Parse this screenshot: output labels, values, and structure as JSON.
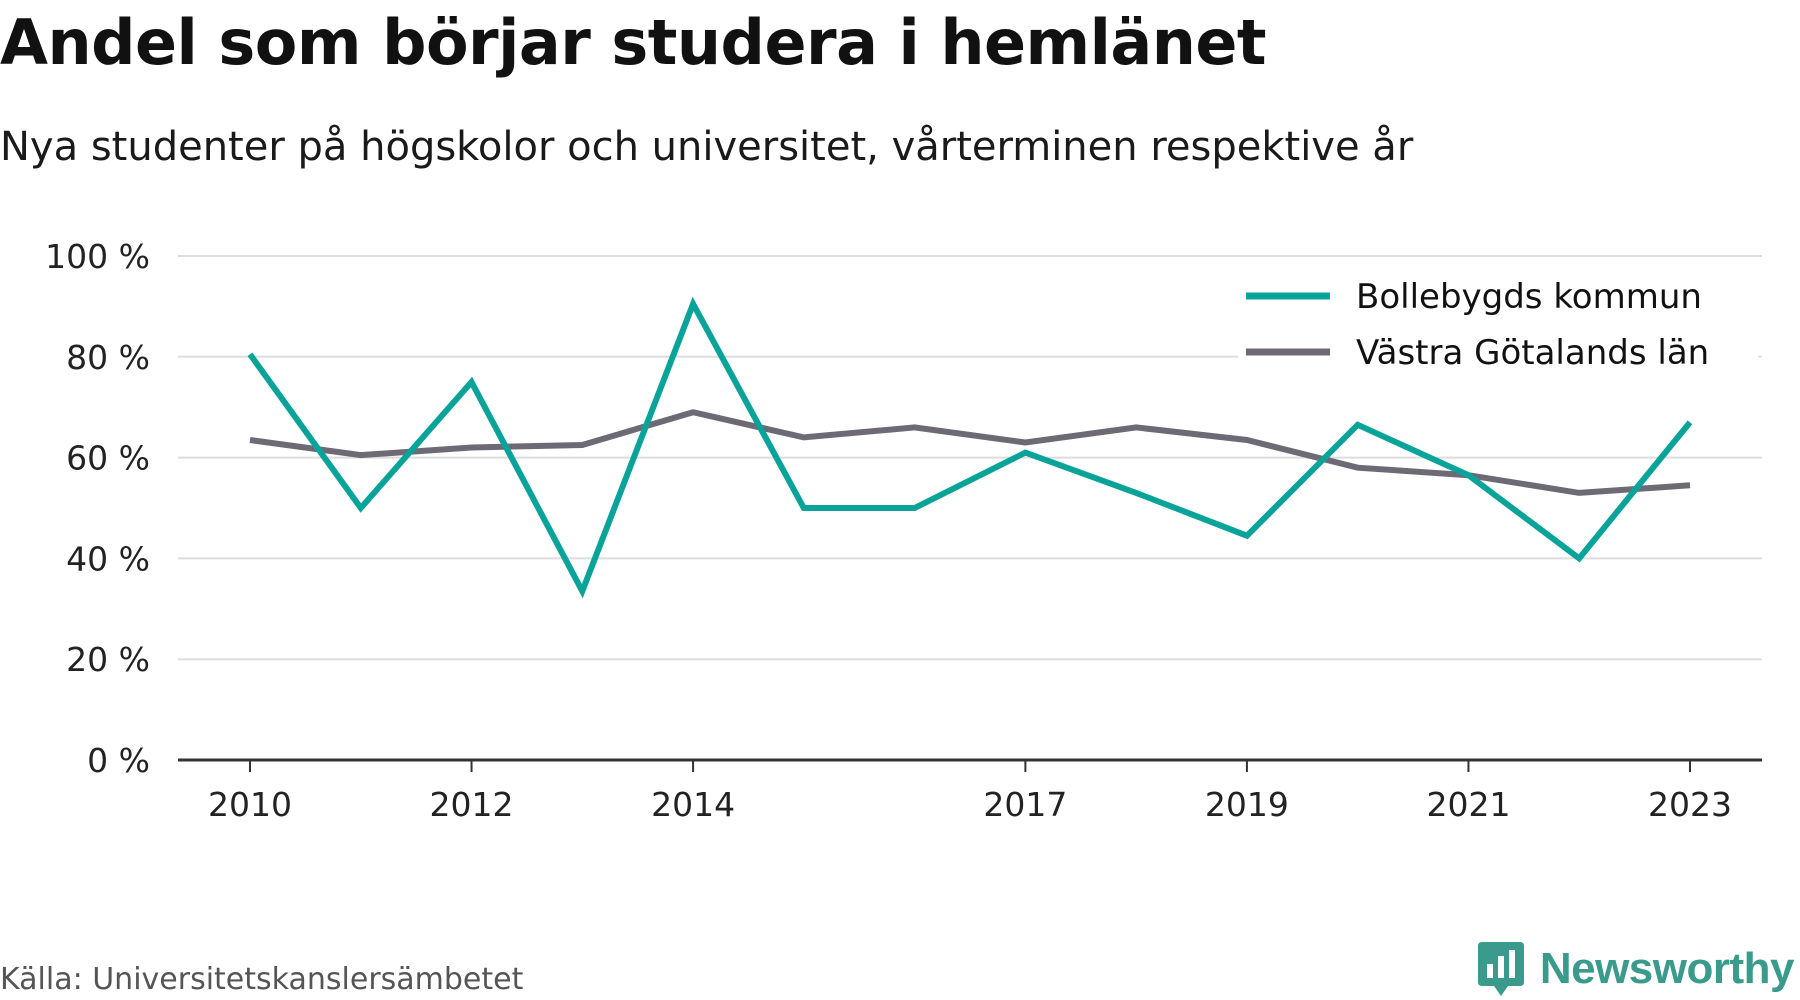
{
  "title": "Andel som börjar studera i hemlänet",
  "subtitle": "Nya studenter på högskolor och universitet, vårterminen respektive år",
  "source": "Källa: Universitetskanslersämbetet",
  "brand": {
    "name": "Newsworthy",
    "icon": "newsworthy-logo-icon",
    "color": "#3a9a8c"
  },
  "chart_data": {
    "type": "line",
    "title": "Andel som börjar studera i hemlänet",
    "subtitle": "Nya studenter på högskolor och universitet, vårterminen respektive år",
    "x": [
      2010,
      2011,
      2012,
      2013,
      2014,
      2015,
      2016,
      2017,
      2018,
      2019,
      2020,
      2021,
      2022,
      2023
    ],
    "x_tick_labels": [
      "2010",
      "2012",
      "2014",
      "2017",
      "2019",
      "2021",
      "2023"
    ],
    "y_ticks": [
      0,
      20,
      40,
      60,
      80,
      100
    ],
    "y_tick_labels": [
      "0 %",
      "20 %",
      "40 %",
      "60 %",
      "80 %",
      "100 %"
    ],
    "ylim": [
      0,
      100
    ],
    "grid": true,
    "legend_position": "top-right",
    "series": [
      {
        "name": "Bollebygds kommun",
        "color": "#0aa39a",
        "values": [
          80.5,
          50,
          75,
          33.5,
          90.5,
          50,
          50,
          61,
          53,
          44.5,
          66.5,
          56.5,
          40,
          67
        ]
      },
      {
        "name": "Västra Götalands län",
        "color": "#6d6a75",
        "values": [
          63.5,
          60.5,
          62,
          62.5,
          69,
          64,
          66,
          63,
          66,
          63.5,
          58,
          56.5,
          53,
          54.5
        ]
      }
    ]
  }
}
